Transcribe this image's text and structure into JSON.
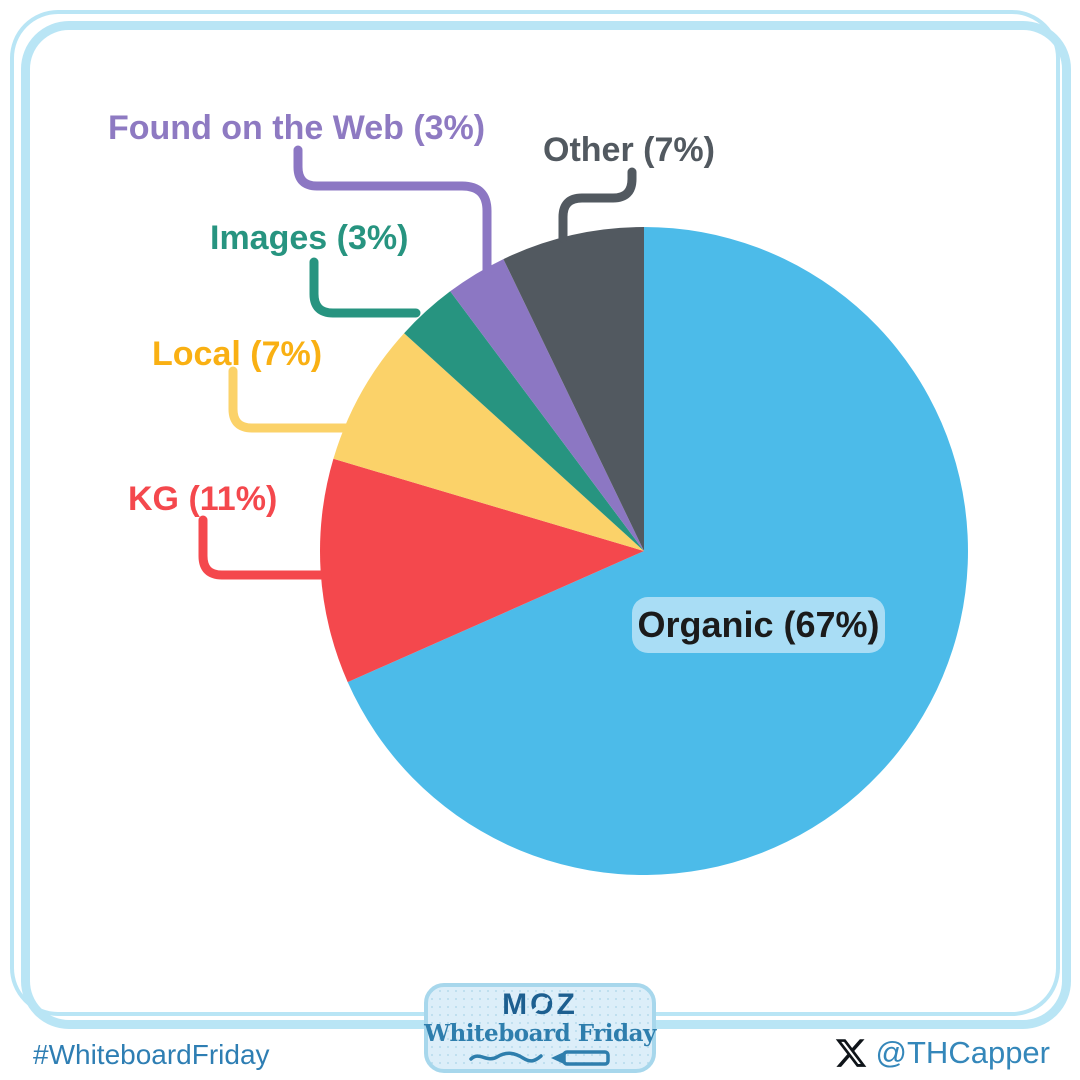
{
  "chart_data": {
    "type": "pie",
    "title": "",
    "legend_position": "callout-labels",
    "slices": [
      {
        "label": "Organic",
        "pct": 67,
        "display": "Organic (67%)",
        "color": "#4CBBE9",
        "label_color": "#1B1B1B",
        "label_bg": "#A9DDF5"
      },
      {
        "label": "KG",
        "pct": 11,
        "display": "KG (11%)",
        "color": "#F4484D",
        "label_color": "#F4484D"
      },
      {
        "label": "Local",
        "pct": 7,
        "display": "Local (7%)",
        "color": "#FBD269",
        "label_color": "#F9B013"
      },
      {
        "label": "Images",
        "pct": 3,
        "display": "Images (3%)",
        "color": "#279480",
        "label_color": "#279480"
      },
      {
        "label": "Found on the Web",
        "pct": 3,
        "display": "Found on the Web (3%)",
        "color": "#8C77C3",
        "label_color": "#8E7AC2"
      },
      {
        "label": "Other",
        "pct": 7,
        "display": "Other (7%)",
        "color": "#525960",
        "label_color": "#525960"
      }
    ]
  },
  "branding": {
    "badge": {
      "brand": "MOZ",
      "series": "Whiteboard Friday"
    },
    "footer": {
      "hashtag": "#WhiteboardFriday",
      "handle": "@THCapper"
    }
  },
  "icons": {
    "handle_icon": "x-logo-icon",
    "badge_icons": [
      "squiggle-underline",
      "marker-icon"
    ]
  },
  "colors": {
    "background": "#FFFFFF",
    "frame": "#B9E5F5",
    "footer_text": "#2E7EB3",
    "handle_text": "#3487BA",
    "x_black": "#0F1419",
    "badge_bg": "#DCEEF9",
    "badge_border": "#A7D7EC",
    "moz_navy": "#1D5F90",
    "wf_blue": "#2E7EAD"
  }
}
